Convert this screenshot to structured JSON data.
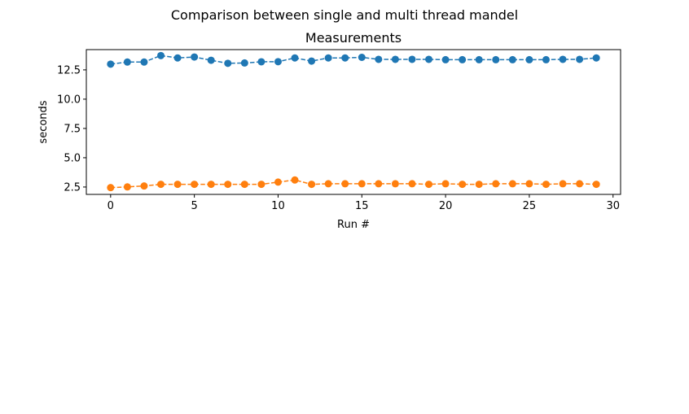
{
  "figure": {
    "suptitle": "Comparison between single and multi thread mandel"
  },
  "chart_data": {
    "type": "line",
    "title": "Measurements",
    "xlabel": "Run #",
    "ylabel": "seconds",
    "xlim": [
      -1.45,
      30.45
    ],
    "ylim": [
      1.87,
      14.23
    ],
    "xticks": [
      0,
      5,
      10,
      15,
      20,
      25,
      30
    ],
    "xtick_labels": [
      "0",
      "5",
      "10",
      "15",
      "20",
      "25",
      "30"
    ],
    "yticks": [
      2.5,
      5.0,
      7.5,
      10.0,
      12.5
    ],
    "ytick_labels": [
      "2.5",
      "5.0",
      "7.5",
      "10.0",
      "12.5"
    ],
    "grid": false,
    "x": [
      0,
      1,
      2,
      3,
      4,
      5,
      6,
      7,
      8,
      9,
      10,
      11,
      12,
      13,
      14,
      15,
      16,
      17,
      18,
      19,
      20,
      21,
      22,
      23,
      24,
      25,
      26,
      27,
      28,
      29
    ],
    "series": [
      {
        "color": "#1f77b4",
        "marker": "circle",
        "linestyle": "dashed",
        "values": [
          12.99,
          13.17,
          13.17,
          13.72,
          13.52,
          13.6,
          13.32,
          13.06,
          13.09,
          13.19,
          13.2,
          13.52,
          13.25,
          13.52,
          13.52,
          13.57,
          13.4,
          13.4,
          13.4,
          13.4,
          13.37,
          13.37,
          13.37,
          13.37,
          13.37,
          13.37,
          13.37,
          13.4,
          13.4,
          13.52
        ]
      },
      {
        "color": "#ff7f0e",
        "marker": "circle",
        "linestyle": "dashed",
        "values": [
          2.45,
          2.51,
          2.59,
          2.73,
          2.73,
          2.73,
          2.73,
          2.73,
          2.73,
          2.73,
          2.92,
          3.1,
          2.73,
          2.78,
          2.78,
          2.78,
          2.78,
          2.78,
          2.78,
          2.73,
          2.78,
          2.73,
          2.73,
          2.78,
          2.78,
          2.78,
          2.73,
          2.78,
          2.78,
          2.73
        ]
      }
    ]
  }
}
